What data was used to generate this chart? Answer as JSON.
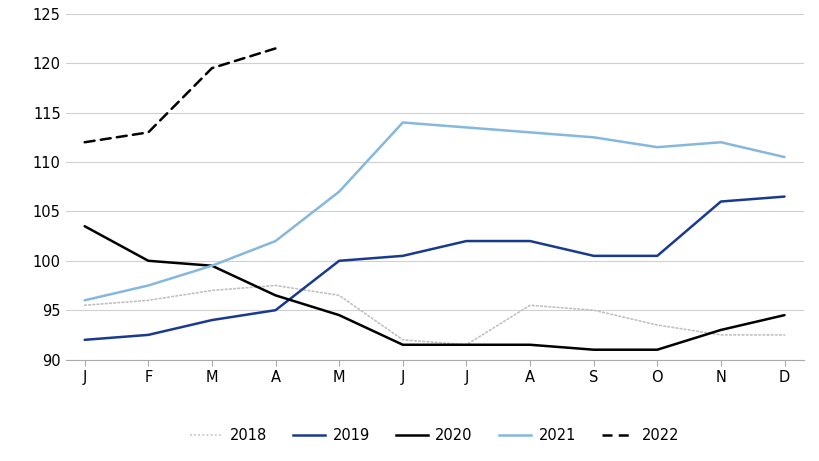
{
  "months": [
    "J",
    "F",
    "M",
    "A",
    "M",
    "J",
    "J",
    "A",
    "S",
    "O",
    "N",
    "D"
  ],
  "series": {
    "2018": [
      95.5,
      96.0,
      97.0,
      97.5,
      96.5,
      92.0,
      91.5,
      95.5,
      95.0,
      93.5,
      92.5,
      92.5
    ],
    "2019": [
      92.0,
      92.5,
      94.0,
      95.0,
      100.0,
      100.5,
      102.0,
      102.0,
      100.5,
      100.5,
      106.0,
      106.5
    ],
    "2020": [
      103.5,
      100.0,
      99.5,
      96.5,
      94.5,
      91.5,
      91.5,
      91.5,
      91.0,
      91.0,
      93.0,
      94.5
    ],
    "2021": [
      96.0,
      97.5,
      99.5,
      102.0,
      107.0,
      114.0,
      113.5,
      113.0,
      112.5,
      111.5,
      112.0,
      110.5
    ],
    "2022": [
      112.0,
      113.0,
      119.5,
      121.5,
      null,
      null,
      null,
      null,
      null,
      null,
      null,
      null
    ]
  },
  "colors": {
    "2018": "#c0c0c0",
    "2019": "#1a3a8f",
    "2020": "#000000",
    "2021": "#85b8dc",
    "2022": "#000000"
  },
  "linestyles": {
    "2018": "dotted",
    "2019": "solid",
    "2020": "solid",
    "2021": "solid",
    "2022": "dashed"
  },
  "linewidths": {
    "2018": 1.2,
    "2019": 1.8,
    "2020": 1.8,
    "2021": 1.8,
    "2022": 1.8
  },
  "legend_order": [
    "2018",
    "2019",
    "2020",
    "2021",
    "2022"
  ],
  "ylim": [
    90,
    125
  ],
  "yticks": [
    90,
    95,
    100,
    105,
    110,
    115,
    120,
    125
  ],
  "background_color": "#ffffff",
  "grid_color": "#d0d0d0"
}
